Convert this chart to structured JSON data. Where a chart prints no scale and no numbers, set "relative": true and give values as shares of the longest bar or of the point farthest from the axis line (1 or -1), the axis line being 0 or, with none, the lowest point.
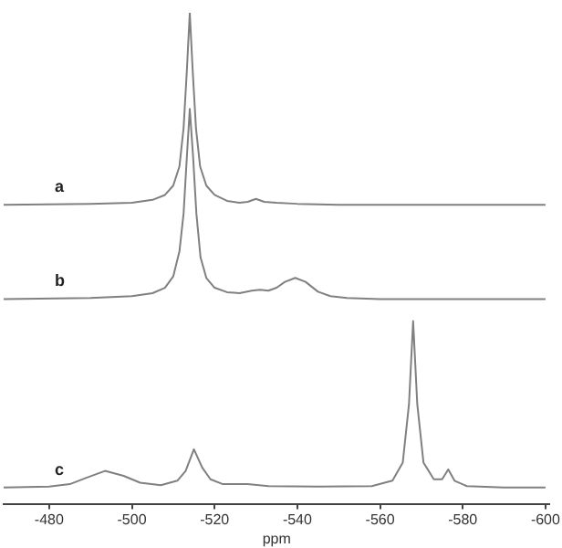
{
  "chart_data": {
    "type": "line",
    "relative": true,
    "xlim": [
      -469,
      -601
    ],
    "xticks": [
      -480,
      -500,
      -520,
      -540,
      -560,
      -580,
      -600
    ],
    "xlabel": "ppm",
    "legend": false,
    "marker": "none",
    "series": [
      {
        "name": "a",
        "color": "#808080",
        "x": [
          -469,
          -490,
          -500,
          -505,
          -508,
          -510,
          -511.5,
          -512.5,
          -513.3,
          -514,
          -514.7,
          -515.5,
          -516.5,
          -518,
          -520,
          -523,
          -526,
          -528,
          -530,
          -532,
          -535,
          -540,
          -550,
          -570,
          -600
        ],
        "values": [
          0.609,
          0.611,
          0.613,
          0.619,
          0.629,
          0.648,
          0.687,
          0.765,
          0.883,
          1,
          0.883,
          0.765,
          0.687,
          0.648,
          0.629,
          0.617,
          0.613,
          0.615,
          0.621,
          0.615,
          0.613,
          0.611,
          0.609,
          0.609,
          0.609
        ]
      },
      {
        "name": "b",
        "color": "#808080",
        "x": [
          -469,
          -490,
          -500,
          -505,
          -508,
          -510,
          -511.5,
          -512.5,
          -513.3,
          -514,
          -514.8,
          -515.6,
          -516.6,
          -518,
          -520,
          -523,
          -526,
          -529,
          -531,
          -533,
          -535,
          -537,
          -539.5,
          -542,
          -545,
          -548,
          -552,
          -560,
          -600
        ],
        "values": [
          0.417,
          0.419,
          0.423,
          0.429,
          0.44,
          0.463,
          0.514,
          0.591,
          0.707,
          0.804,
          0.707,
          0.591,
          0.502,
          0.46,
          0.44,
          0.431,
          0.429,
          0.434,
          0.436,
          0.434,
          0.44,
          0.452,
          0.46,
          0.452,
          0.432,
          0.423,
          0.419,
          0.417,
          0.417
        ]
      },
      {
        "name": "c",
        "color": "#808080",
        "x": [
          -469,
          -480,
          -485,
          -489,
          -493.5,
          -498,
          -502,
          -507,
          -511,
          -513,
          -515,
          -517,
          -519,
          -522,
          -528,
          -533,
          -545,
          -558,
          -563,
          -565.5,
          -567,
          -568,
          -569,
          -570.5,
          -573,
          -575,
          -576.5,
          -578,
          -581,
          -590,
          -600
        ],
        "values": [
          0.033,
          0.035,
          0.04,
          0.053,
          0.067,
          0.057,
          0.043,
          0.038,
          0.047,
          0.067,
          0.111,
          0.074,
          0.05,
          0.04,
          0.04,
          0.036,
          0.035,
          0.036,
          0.047,
          0.084,
          0.203,
          0.372,
          0.203,
          0.084,
          0.05,
          0.05,
          0.07,
          0.047,
          0.036,
          0.033,
          0.033
        ]
      }
    ]
  }
}
